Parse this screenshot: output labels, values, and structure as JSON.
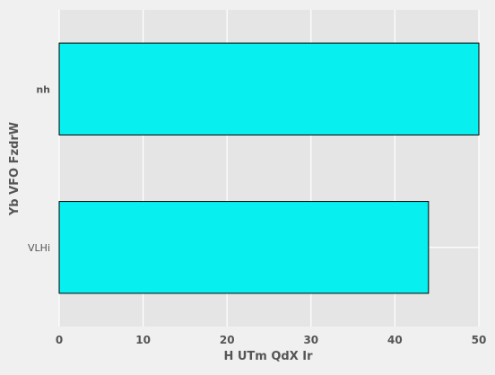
{
  "chart_data": {
    "type": "bar",
    "orientation": "horizontal",
    "categories": [
      "VLHi",
      "nh"
    ],
    "category_label_styles": [
      "normal",
      "bold"
    ],
    "values": [
      44,
      50
    ],
    "xlabel": "H UTm  QdX Ir",
    "ylabel": "Yb VFO FzdrW",
    "xlim": [
      0,
      50
    ],
    "xticks": [
      0,
      10,
      20,
      30,
      40,
      50
    ],
    "grid": true,
    "colors": {
      "bar_fill": "#08eff0",
      "bar_edge": "#000000",
      "plot_bg": "#e5e5e5",
      "figure_bg": "#f0f0f0",
      "grid": "#ffffff",
      "text": "#555555"
    }
  }
}
